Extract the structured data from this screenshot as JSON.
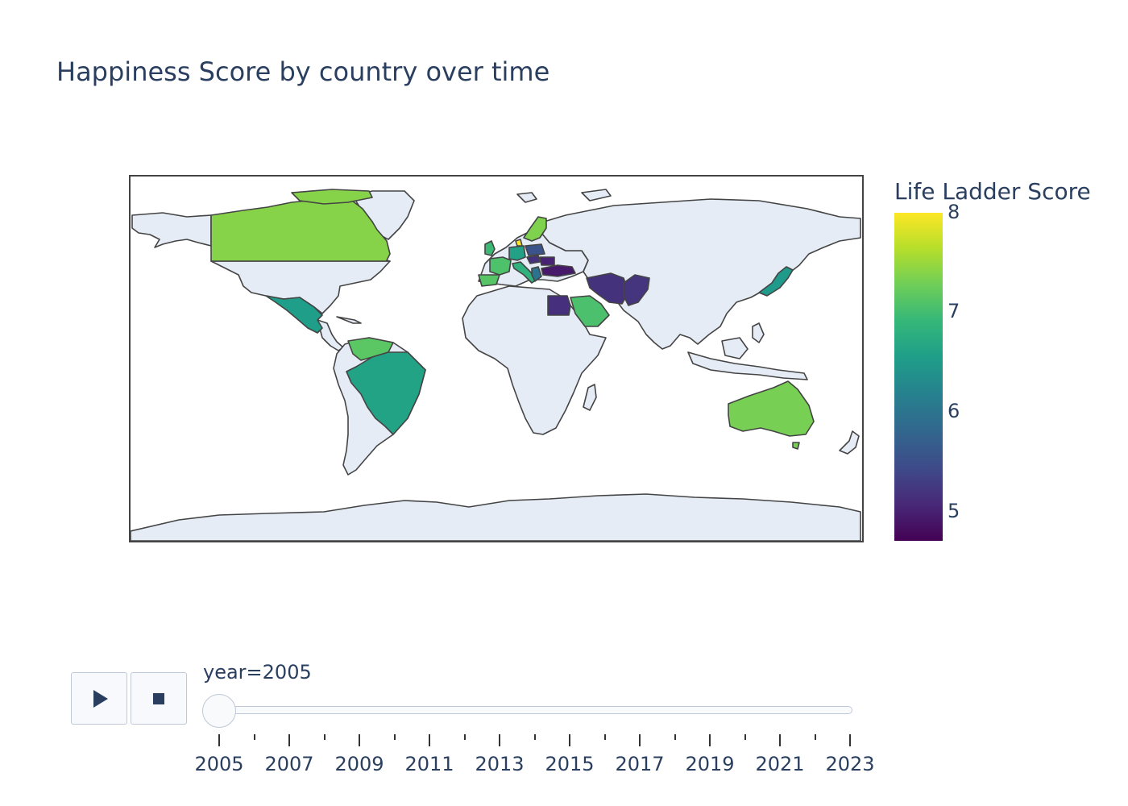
{
  "title": "Happiness Score by country over time",
  "colorbar": {
    "title": "Life Ladder Score",
    "ticks": [
      "5",
      "6",
      "7",
      "8"
    ],
    "range": [
      4.73,
      8.02
    ],
    "colorscale": "Viridis"
  },
  "colors": {
    "land": "#e5ecf6",
    "border": "#444444",
    "text": "#2a3f5f"
  },
  "countries": [
    {
      "name": "Canada",
      "value": 7.42
    },
    {
      "name": "Mexico",
      "value": 6.58
    },
    {
      "name": "Venezuela",
      "value": 7.17
    },
    {
      "name": "Brazil",
      "value": 6.64
    },
    {
      "name": "United Kingdom",
      "value": 6.98
    },
    {
      "name": "France",
      "value": 7.09
    },
    {
      "name": "Spain",
      "value": 7.15
    },
    {
      "name": "Germany",
      "value": 6.62
    },
    {
      "name": "Denmark",
      "value": 8.02
    },
    {
      "name": "Sweden",
      "value": 7.38
    },
    {
      "name": "Italy",
      "value": 6.85
    },
    {
      "name": "Hungary",
      "value": 5.19
    },
    {
      "name": "Poland",
      "value": 5.58
    },
    {
      "name": "Romania",
      "value": 5.05
    },
    {
      "name": "Turkey",
      "value": 4.95
    },
    {
      "name": "Greece",
      "value": 6.0
    },
    {
      "name": "Egypt",
      "value": 5.17
    },
    {
      "name": "Saudi Arabia",
      "value": 7.08
    },
    {
      "name": "Iran",
      "value": 5.2
    },
    {
      "name": "Pakistan",
      "value": 5.23
    },
    {
      "name": "Japan",
      "value": 6.52
    },
    {
      "name": "Australia",
      "value": 7.34
    }
  ],
  "animation": {
    "play_icon": "play-icon",
    "stop_icon": "stop-icon",
    "current_label": "year=2005",
    "current_value": 2005,
    "years": [
      "2005",
      "2007",
      "2009",
      "2011",
      "2013",
      "2015",
      "2017",
      "2019",
      "2021",
      "2023"
    ]
  }
}
